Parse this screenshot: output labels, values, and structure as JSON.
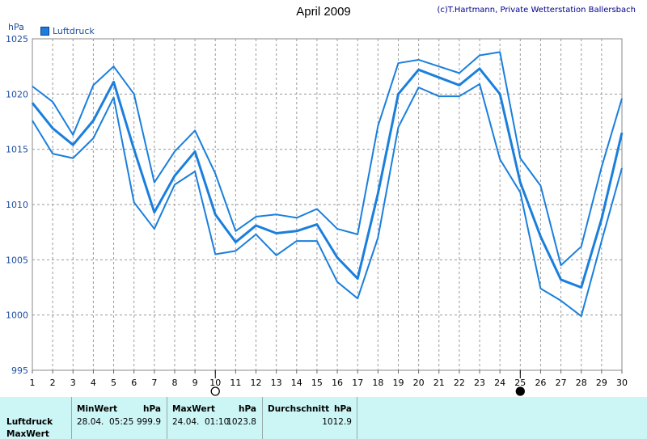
{
  "chart_data": {
    "type": "line",
    "title": "April 2009",
    "credit": "(c)T.Hartmann, Private Wetterstation Ballersbach",
    "unit": "hPa",
    "legend": "Luftdruck",
    "x": [
      1,
      2,
      3,
      4,
      5,
      6,
      7,
      8,
      9,
      10,
      11,
      12,
      13,
      14,
      15,
      16,
      17,
      18,
      19,
      20,
      21,
      22,
      23,
      24,
      25,
      26,
      27,
      28,
      29,
      30
    ],
    "xlim": [
      1,
      30
    ],
    "ylim": [
      995,
      1025
    ],
    "yticks": [
      995,
      1000,
      1005,
      1010,
      1015,
      1020,
      1025
    ],
    "grid": true,
    "series": [
      {
        "role": "max",
        "values": [
          1020.7,
          1019.3,
          1016.3,
          1020.8,
          1022.5,
          1020.0,
          1012.0,
          1014.8,
          1016.7,
          1012.8,
          1007.6,
          1008.9,
          1009.1,
          1008.8,
          1009.6,
          1007.8,
          1007.3,
          1017.1,
          1022.8,
          1023.1,
          1022.5,
          1021.9,
          1023.5,
          1023.8,
          1014.2,
          1011.7,
          1004.5,
          1006.2,
          1013.4,
          1019.6
        ]
      },
      {
        "role": "mean",
        "values": [
          1019.2,
          1016.9,
          1015.4,
          1017.6,
          1021.1,
          1015.0,
          1009.3,
          1012.6,
          1014.8,
          1009.1,
          1006.6,
          1008.1,
          1007.4,
          1007.6,
          1008.2,
          1005.2,
          1003.3,
          1011.0,
          1020.0,
          1022.2,
          1021.5,
          1020.8,
          1022.3,
          1020.0,
          1012.0,
          1007.1,
          1003.2,
          1002.5,
          1008.7,
          1016.5
        ]
      },
      {
        "role": "min",
        "values": [
          1017.6,
          1014.6,
          1014.2,
          1016.0,
          1019.7,
          1010.2,
          1007.8,
          1011.8,
          1013.0,
          1005.5,
          1005.8,
          1007.3,
          1005.4,
          1006.7,
          1006.7,
          1003.0,
          1001.5,
          1007.0,
          1017.0,
          1020.6,
          1019.8,
          1019.8,
          1020.9,
          1014.1,
          1011.1,
          1002.4,
          1001.3,
          999.9,
          1006.7,
          1013.3
        ]
      }
    ],
    "moon_markers": [
      {
        "day": 10,
        "phase": "full"
      },
      {
        "day": 25,
        "phase": "new"
      }
    ],
    "colors": {
      "line": "#1a7fdc",
      "grid": "#9a9a9a",
      "panel": "#ccf5f5"
    }
  },
  "summary": {
    "row_label": "Luftdruck",
    "row_label2": "MaxWert",
    "min_header": "MinWert",
    "min_unit": "hPa",
    "min_date": "28.04.",
    "min_time": "05:25",
    "min_value": "999.9",
    "max_header": "MaxWert",
    "max_unit": "hPa",
    "max_date": "24.04.",
    "max_time": "01:10",
    "max_value": "1023.8",
    "avg_header": "Durchschnitt",
    "avg_unit": "hPa",
    "avg_value": "1012.9"
  }
}
